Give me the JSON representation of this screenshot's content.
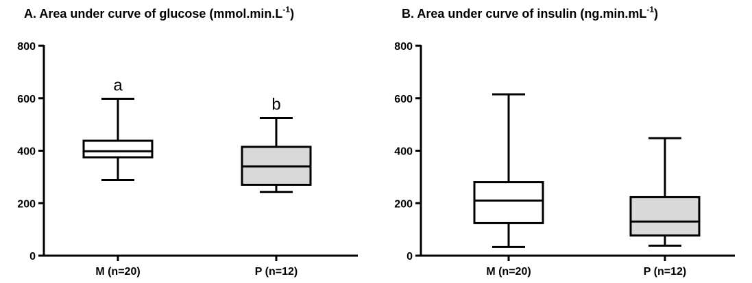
{
  "chart_data": [
    {
      "type": "box",
      "title": "A. Area under curve of glucose (mmol.min.L",
      "title_superscript": "-1",
      "title_suffix": ")",
      "categories": [
        "M (n=20)",
        "P (n=12)"
      ],
      "ylim": [
        0,
        800
      ],
      "yticks": [
        0,
        200,
        400,
        600,
        800
      ],
      "ytick_labels": [
        "0",
        "200",
        "400",
        "600",
        "800"
      ],
      "boxes": [
        {
          "category": "M (n=20)",
          "min": 288,
          "q1": 375,
          "median": 398,
          "q3": 438,
          "max": 598,
          "fill": "#ffffff",
          "annotation": "a"
        },
        {
          "category": "P (n=12)",
          "min": 243,
          "q1": 270,
          "median": 340,
          "q3": 415,
          "max": 525,
          "fill": "#d9d9d9",
          "annotation": "b"
        }
      ],
      "grid": false
    },
    {
      "type": "box",
      "title": "B. Area under curve of insulin (ng.min.mL",
      "title_superscript": "-1",
      "title_suffix": ")",
      "categories": [
        "M (n=20)",
        "P (n=12)"
      ],
      "ylim": [
        0,
        800
      ],
      "yticks": [
        0,
        200,
        400,
        600,
        800
      ],
      "ytick_labels": [
        "0",
        "200",
        "400",
        "600",
        "800"
      ],
      "boxes": [
        {
          "category": "M (n=20)",
          "min": 33,
          "q1": 124,
          "median": 210,
          "q3": 280,
          "max": 615,
          "fill": "#ffffff",
          "annotation": ""
        },
        {
          "category": "P (n=12)",
          "min": 38,
          "q1": 77,
          "median": 130,
          "q3": 223,
          "max": 448,
          "fill": "#d9d9d9",
          "annotation": ""
        }
      ],
      "grid": false
    }
  ]
}
